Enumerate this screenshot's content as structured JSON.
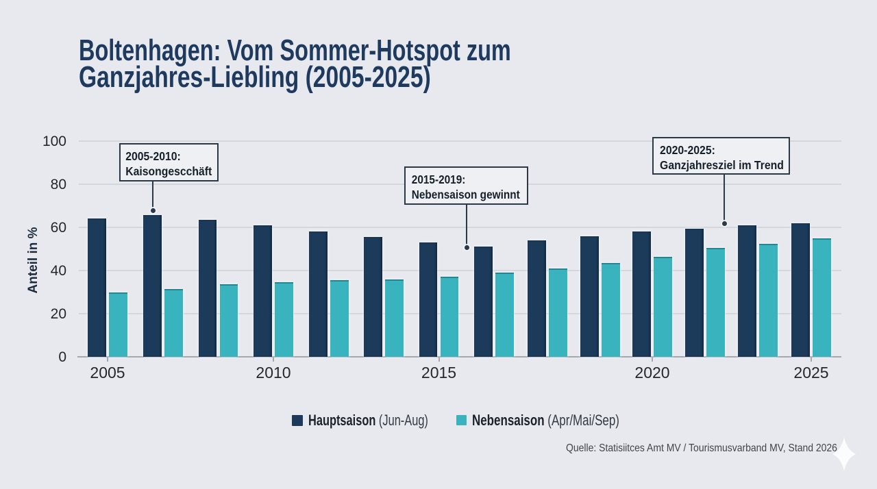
{
  "page": {
    "background": "#e7e9ee"
  },
  "title": {
    "line1": "Boltenhagen: Vom Sommer-Hotspot zum",
    "line2": "Ganzjahres-Liebling (2005-2025)"
  },
  "chart_data": {
    "type": "bar",
    "title": "Boltenhagen: Vom Sommer-Hotspot zum Ganzjahres-Liebling (2005-2025)",
    "xlabel": "",
    "ylabel": "Anteil in %",
    "ylim": [
      0,
      100
    ],
    "yticks": [
      0,
      20,
      40,
      60,
      80,
      100
    ],
    "grid": true,
    "legend_position": "bottom",
    "xticks": [
      {
        "label": "2005",
        "group": 0
      },
      {
        "label": "2010",
        "group": 3
      },
      {
        "label": "2015",
        "group": 6
      },
      {
        "label": "2020",
        "group": 10
      },
      {
        "label": "2025",
        "group": 13
      }
    ],
    "series": [
      {
        "name": "Hauptsaison",
        "suffix": "(Jun-Aug)",
        "color": "#1c3a59",
        "values": [
          64,
          65.7,
          63.5,
          61,
          58,
          55.5,
          53,
          51,
          54,
          56,
          58,
          59.5,
          61,
          62
        ]
      },
      {
        "name": "Nebensaison",
        "suffix": "(Apr/Mai/Sep)",
        "color": "#39b3bd",
        "values": [
          30,
          31.5,
          33.5,
          34.5,
          35.5,
          36,
          37,
          39,
          41,
          43.5,
          46.5,
          50.5,
          52.5,
          55
        ]
      }
    ],
    "annotations": [
      {
        "line1": "2005-2010:",
        "line2": "Kaisongescchäft"
      },
      {
        "line1": "2015-2019:",
        "line2": "Nebensaison gewinnt"
      },
      {
        "line1": "2020-2025:",
        "line2": "Ganzjahresziel im Trend"
      }
    ]
  },
  "source": {
    "text": "Quelle: Statisiitces Amt MV / Tourismusvarband MV, Stand 2026"
  }
}
